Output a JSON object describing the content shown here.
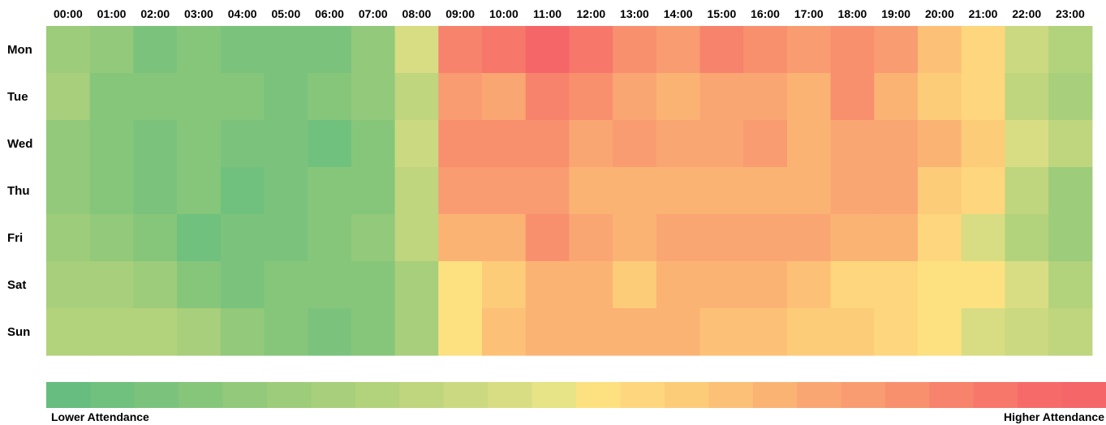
{
  "chart_data": {
    "type": "heatmap",
    "title": "",
    "x_labels": [
      "00:00",
      "01:00",
      "02:00",
      "03:00",
      "04:00",
      "05:00",
      "06:00",
      "07:00",
      "08:00",
      "09:00",
      "10:00",
      "11:00",
      "12:00",
      "13:00",
      "14:00",
      "15:00",
      "16:00",
      "17:00",
      "18:00",
      "19:00",
      "20:00",
      "21:00",
      "22:00",
      "23:00"
    ],
    "y_labels": [
      "Mon",
      "Tue",
      "Wed",
      "Thu",
      "Fri",
      "Sat",
      "Sun"
    ],
    "values": [
      [
        5,
        4,
        2,
        3,
        2,
        2,
        2,
        4,
        10,
        20,
        21,
        23,
        21,
        19,
        18,
        20,
        19,
        18,
        19,
        18,
        15,
        13,
        9,
        7
      ],
      [
        6,
        3,
        3,
        3,
        3,
        2,
        3,
        4,
        8,
        18,
        17,
        20,
        19,
        17,
        16,
        17,
        17,
        16,
        19,
        16,
        14,
        13,
        8,
        6
      ],
      [
        4,
        3,
        2,
        3,
        2,
        2,
        1,
        3,
        9,
        19,
        19,
        19,
        17,
        18,
        17,
        17,
        18,
        16,
        17,
        17,
        16,
        14,
        10,
        8
      ],
      [
        4,
        3,
        2,
        3,
        1,
        2,
        3,
        3,
        8,
        18,
        18,
        18,
        16,
        16,
        16,
        16,
        16,
        16,
        17,
        17,
        14,
        13,
        8,
        5
      ],
      [
        5,
        4,
        3,
        1,
        2,
        2,
        3,
        4,
        8,
        16,
        16,
        19,
        17,
        16,
        17,
        17,
        17,
        17,
        16,
        16,
        13,
        10,
        7,
        5
      ],
      [
        6,
        6,
        5,
        3,
        2,
        3,
        3,
        3,
        6,
        12,
        14,
        16,
        16,
        14,
        16,
        16,
        16,
        15,
        13,
        13,
        12,
        12,
        10,
        7
      ],
      [
        7,
        7,
        7,
        6,
        4,
        3,
        2,
        3,
        6,
        12,
        15,
        16,
        16,
        16,
        16,
        15,
        15,
        14,
        14,
        13,
        12,
        10,
        9,
        8
      ]
    ],
    "color_scale": [
      "#66bd7f",
      "#70c07e",
      "#7bc37d",
      "#86c67b",
      "#92c97b",
      "#9dcc7b",
      "#a8cf7b",
      "#b3d27c",
      "#bfd57e",
      "#cbd981",
      "#d8dd83",
      "#e6e486",
      "#fde180",
      "#fed67d",
      "#fdcc79",
      "#fcc077",
      "#fbb374",
      "#faa673",
      "#f99c71",
      "#f8906e",
      "#f7836c",
      "#f7776b",
      "#f66b6a",
      "#f56669"
    ],
    "legend": {
      "low_label": "Lower Attendance",
      "high_label": "Higher Attendance"
    }
  }
}
